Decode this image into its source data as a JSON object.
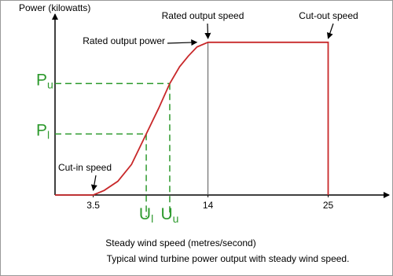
{
  "chart_data": {
    "type": "line",
    "title": "Typical wind turbine power output with steady wind speed.",
    "x_label": "Steady wind speed (metres/second)",
    "y_label": "Power (kilowatts)",
    "x": [
      0,
      3.5,
      4.5,
      5.75,
      7,
      8.35,
      9.5,
      10.5,
      11.4,
      12.2,
      13,
      14,
      25,
      25
    ],
    "series": [
      {
        "color": "#c8282a",
        "values": [
          0,
          0,
          0.03,
          0.09,
          0.2,
          0.4,
          0.57,
          0.73,
          0.84,
          0.91,
          0.97,
          1,
          1,
          0
        ]
      }
    ],
    "xlim": [
      0,
      30
    ],
    "xticks": [
      3.5,
      14,
      25
    ],
    "ylim": [
      0,
      1.2
    ],
    "rated_speed_line": {
      "x": 14,
      "y": 1,
      "color": "#555555"
    },
    "operating_points": [
      {
        "x": 8.35,
        "y": 0.4,
        "x_symbol": "U",
        "x_sub": "l",
        "y_symbol": "P",
        "y_sub": "l",
        "color": "#2e9a2e"
      },
      {
        "x": 10.5,
        "y": 0.73,
        "x_symbol": "U",
        "x_sub": "u",
        "y_symbol": "P",
        "y_sub": "u",
        "color": "#2e9a2e"
      }
    ],
    "annotations": [
      {
        "text": "Cut-in speed",
        "x": 3.5,
        "y": 0
      },
      {
        "text": "Rated output power",
        "x": 13.4,
        "y": 1
      },
      {
        "text": "Rated output speed",
        "x": 14,
        "y": 1
      },
      {
        "text": "Cut-out speed",
        "x": 25,
        "y": 1
      }
    ]
  }
}
